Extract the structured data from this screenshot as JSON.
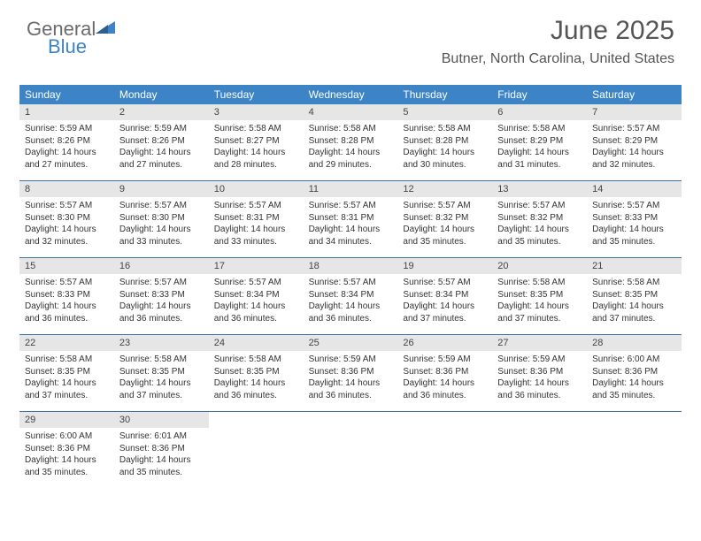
{
  "brand": {
    "line1": "General",
    "line2": "Blue"
  },
  "header": {
    "title": "June 2025",
    "location": "Butner, North Carolina, United States"
  },
  "style": {
    "header_bg": "#3d84c6",
    "header_fg": "#ffffff",
    "daynum_bg": "#e6e6e6",
    "week_border": "#3d73a8",
    "title_color": "#555555",
    "body_color": "#333333"
  },
  "weekdays": [
    "Sunday",
    "Monday",
    "Tuesday",
    "Wednesday",
    "Thursday",
    "Friday",
    "Saturday"
  ],
  "weeks": [
    [
      {
        "n": "1",
        "sr": "Sunrise: 5:59 AM",
        "ss": "Sunset: 8:26 PM",
        "d1": "Daylight: 14 hours",
        "d2": "and 27 minutes."
      },
      {
        "n": "2",
        "sr": "Sunrise: 5:59 AM",
        "ss": "Sunset: 8:26 PM",
        "d1": "Daylight: 14 hours",
        "d2": "and 27 minutes."
      },
      {
        "n": "3",
        "sr": "Sunrise: 5:58 AM",
        "ss": "Sunset: 8:27 PM",
        "d1": "Daylight: 14 hours",
        "d2": "and 28 minutes."
      },
      {
        "n": "4",
        "sr": "Sunrise: 5:58 AM",
        "ss": "Sunset: 8:28 PM",
        "d1": "Daylight: 14 hours",
        "d2": "and 29 minutes."
      },
      {
        "n": "5",
        "sr": "Sunrise: 5:58 AM",
        "ss": "Sunset: 8:28 PM",
        "d1": "Daylight: 14 hours",
        "d2": "and 30 minutes."
      },
      {
        "n": "6",
        "sr": "Sunrise: 5:58 AM",
        "ss": "Sunset: 8:29 PM",
        "d1": "Daylight: 14 hours",
        "d2": "and 31 minutes."
      },
      {
        "n": "7",
        "sr": "Sunrise: 5:57 AM",
        "ss": "Sunset: 8:29 PM",
        "d1": "Daylight: 14 hours",
        "d2": "and 32 minutes."
      }
    ],
    [
      {
        "n": "8",
        "sr": "Sunrise: 5:57 AM",
        "ss": "Sunset: 8:30 PM",
        "d1": "Daylight: 14 hours",
        "d2": "and 32 minutes."
      },
      {
        "n": "9",
        "sr": "Sunrise: 5:57 AM",
        "ss": "Sunset: 8:30 PM",
        "d1": "Daylight: 14 hours",
        "d2": "and 33 minutes."
      },
      {
        "n": "10",
        "sr": "Sunrise: 5:57 AM",
        "ss": "Sunset: 8:31 PM",
        "d1": "Daylight: 14 hours",
        "d2": "and 33 minutes."
      },
      {
        "n": "11",
        "sr": "Sunrise: 5:57 AM",
        "ss": "Sunset: 8:31 PM",
        "d1": "Daylight: 14 hours",
        "d2": "and 34 minutes."
      },
      {
        "n": "12",
        "sr": "Sunrise: 5:57 AM",
        "ss": "Sunset: 8:32 PM",
        "d1": "Daylight: 14 hours",
        "d2": "and 35 minutes."
      },
      {
        "n": "13",
        "sr": "Sunrise: 5:57 AM",
        "ss": "Sunset: 8:32 PM",
        "d1": "Daylight: 14 hours",
        "d2": "and 35 minutes."
      },
      {
        "n": "14",
        "sr": "Sunrise: 5:57 AM",
        "ss": "Sunset: 8:33 PM",
        "d1": "Daylight: 14 hours",
        "d2": "and 35 minutes."
      }
    ],
    [
      {
        "n": "15",
        "sr": "Sunrise: 5:57 AM",
        "ss": "Sunset: 8:33 PM",
        "d1": "Daylight: 14 hours",
        "d2": "and 36 minutes."
      },
      {
        "n": "16",
        "sr": "Sunrise: 5:57 AM",
        "ss": "Sunset: 8:33 PM",
        "d1": "Daylight: 14 hours",
        "d2": "and 36 minutes."
      },
      {
        "n": "17",
        "sr": "Sunrise: 5:57 AM",
        "ss": "Sunset: 8:34 PM",
        "d1": "Daylight: 14 hours",
        "d2": "and 36 minutes."
      },
      {
        "n": "18",
        "sr": "Sunrise: 5:57 AM",
        "ss": "Sunset: 8:34 PM",
        "d1": "Daylight: 14 hours",
        "d2": "and 36 minutes."
      },
      {
        "n": "19",
        "sr": "Sunrise: 5:57 AM",
        "ss": "Sunset: 8:34 PM",
        "d1": "Daylight: 14 hours",
        "d2": "and 37 minutes."
      },
      {
        "n": "20",
        "sr": "Sunrise: 5:58 AM",
        "ss": "Sunset: 8:35 PM",
        "d1": "Daylight: 14 hours",
        "d2": "and 37 minutes."
      },
      {
        "n": "21",
        "sr": "Sunrise: 5:58 AM",
        "ss": "Sunset: 8:35 PM",
        "d1": "Daylight: 14 hours",
        "d2": "and 37 minutes."
      }
    ],
    [
      {
        "n": "22",
        "sr": "Sunrise: 5:58 AM",
        "ss": "Sunset: 8:35 PM",
        "d1": "Daylight: 14 hours",
        "d2": "and 37 minutes."
      },
      {
        "n": "23",
        "sr": "Sunrise: 5:58 AM",
        "ss": "Sunset: 8:35 PM",
        "d1": "Daylight: 14 hours",
        "d2": "and 37 minutes."
      },
      {
        "n": "24",
        "sr": "Sunrise: 5:58 AM",
        "ss": "Sunset: 8:35 PM",
        "d1": "Daylight: 14 hours",
        "d2": "and 36 minutes."
      },
      {
        "n": "25",
        "sr": "Sunrise: 5:59 AM",
        "ss": "Sunset: 8:36 PM",
        "d1": "Daylight: 14 hours",
        "d2": "and 36 minutes."
      },
      {
        "n": "26",
        "sr": "Sunrise: 5:59 AM",
        "ss": "Sunset: 8:36 PM",
        "d1": "Daylight: 14 hours",
        "d2": "and 36 minutes."
      },
      {
        "n": "27",
        "sr": "Sunrise: 5:59 AM",
        "ss": "Sunset: 8:36 PM",
        "d1": "Daylight: 14 hours",
        "d2": "and 36 minutes."
      },
      {
        "n": "28",
        "sr": "Sunrise: 6:00 AM",
        "ss": "Sunset: 8:36 PM",
        "d1": "Daylight: 14 hours",
        "d2": "and 35 minutes."
      }
    ],
    [
      {
        "n": "29",
        "sr": "Sunrise: 6:00 AM",
        "ss": "Sunset: 8:36 PM",
        "d1": "Daylight: 14 hours",
        "d2": "and 35 minutes."
      },
      {
        "n": "30",
        "sr": "Sunrise: 6:01 AM",
        "ss": "Sunset: 8:36 PM",
        "d1": "Daylight: 14 hours",
        "d2": "and 35 minutes."
      },
      null,
      null,
      null,
      null,
      null
    ]
  ]
}
